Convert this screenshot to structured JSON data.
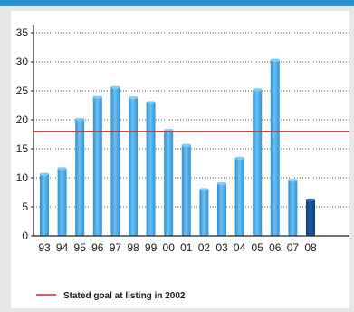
{
  "chart_data": {
    "type": "bar",
    "title": "",
    "xlabel": "",
    "ylabel": "",
    "categories": [
      "93",
      "94",
      "95",
      "96",
      "97",
      "98",
      "99",
      "00",
      "01",
      "02",
      "03",
      "04",
      "05",
      "06",
      "07",
      "08"
    ],
    "values": [
      10.8,
      11.8,
      20.3,
      24.1,
      25.8,
      24.0,
      23.2,
      18.4,
      15.8,
      8.2,
      9.2,
      13.6,
      25.4,
      30.5,
      9.8,
      6.4
    ],
    "highlight_last": true,
    "ylim": [
      0,
      35
    ],
    "yticks": [
      0,
      5,
      10,
      15,
      20,
      25,
      30,
      35
    ],
    "grid": "dotted-horizontal",
    "reference_line": {
      "value": 18,
      "label": "Stated goal at listing in 2002",
      "color": "#d42a2a"
    },
    "legend_position": "bottom-left",
    "colors": {
      "bar": "#3a9ee0",
      "bar_highlight": "#0d4a8c",
      "background": "#e6e7e9",
      "plot_background": "#ffffff",
      "accent": "#2a8fd0"
    }
  }
}
